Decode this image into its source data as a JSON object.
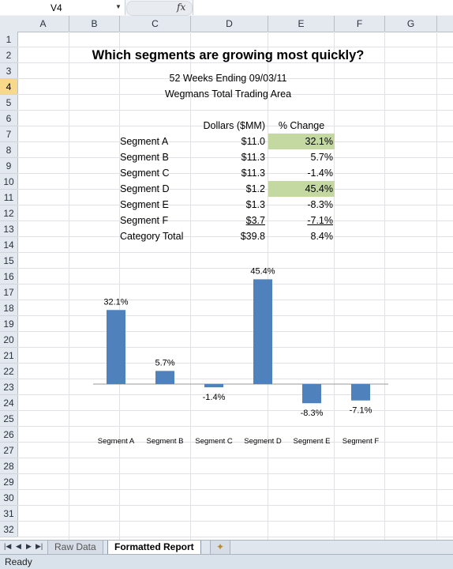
{
  "formula_bar": {
    "name_box": "V4",
    "fx_label": "fx",
    "formula": ""
  },
  "columns": [
    "A",
    "B",
    "C",
    "D",
    "E",
    "F",
    "G"
  ],
  "rows": [
    "1",
    "2",
    "3",
    "4",
    "5",
    "6",
    "7",
    "8",
    "9",
    "10",
    "11",
    "12",
    "13",
    "14",
    "15",
    "16",
    "17",
    "18",
    "19",
    "20",
    "21",
    "22",
    "23",
    "24",
    "25",
    "26",
    "27",
    "28",
    "29",
    "30",
    "31",
    "32"
  ],
  "selected_row": "4",
  "report": {
    "title": "Which segments are growing most quickly?",
    "subtitle1": "52 Weeks Ending 09/03/11",
    "subtitle2": "Wegmans Total Trading Area",
    "header_dollars": "Dollars ($MM)",
    "header_change": "% Change",
    "rows": [
      {
        "label": "Segment A",
        "dollars": "$11.0",
        "change": "32.1%",
        "highlight": true,
        "underline": false
      },
      {
        "label": "Segment B",
        "dollars": "$11.3",
        "change": "5.7%",
        "highlight": false,
        "underline": false
      },
      {
        "label": "Segment C",
        "dollars": "$11.3",
        "change": "-1.4%",
        "highlight": false,
        "underline": false
      },
      {
        "label": "Segment D",
        "dollars": "$1.2",
        "change": "45.4%",
        "highlight": true,
        "underline": false
      },
      {
        "label": "Segment E",
        "dollars": "$1.3",
        "change": "-8.3%",
        "highlight": false,
        "underline": false
      },
      {
        "label": "Segment F",
        "dollars": "$3.7",
        "change": "-7.1%",
        "highlight": false,
        "underline": true
      },
      {
        "label": "Category Total",
        "dollars": "$39.8",
        "change": "8.4%",
        "highlight": false,
        "underline": false
      }
    ],
    "highlight_color": "#c4d9a2"
  },
  "chart_data": {
    "type": "bar",
    "categories": [
      "Segment A",
      "Segment B",
      "Segment C",
      "Segment D",
      "Segment E",
      "Segment F"
    ],
    "values": [
      32.1,
      5.7,
      -1.4,
      45.4,
      -8.3,
      -7.1
    ],
    "data_labels": [
      "32.1%",
      "5.7%",
      "-1.4%",
      "45.4%",
      "-8.3%",
      "-7.1%"
    ],
    "title": "",
    "xlabel": "",
    "ylabel": "",
    "ylim": [
      -10,
      50
    ],
    "grid": false,
    "bar_color": "#4f81bd"
  },
  "sheet_tabs": [
    "Raw Data",
    "Formatted Report"
  ],
  "active_tab": "Formatted Report",
  "status": "Ready"
}
